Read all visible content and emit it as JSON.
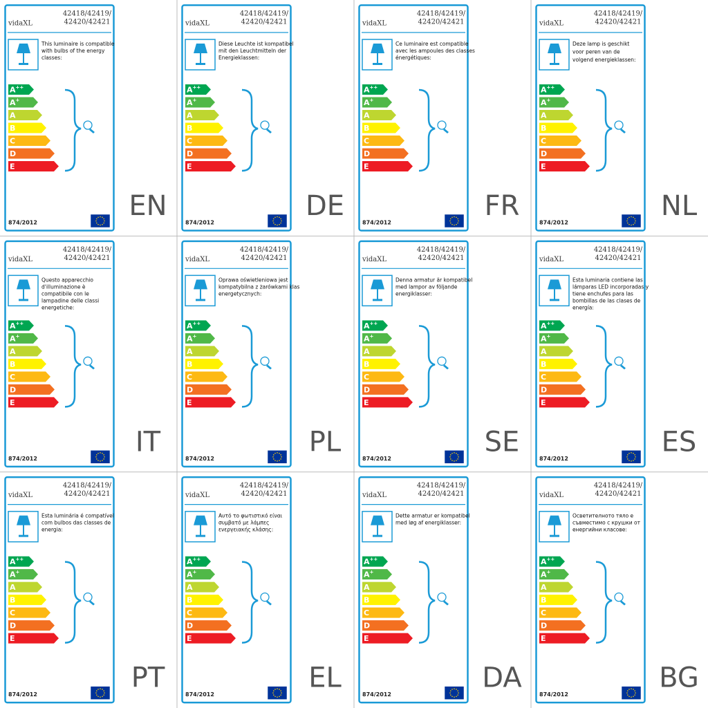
{
  "brand": "vidaXL",
  "model": [
    "42418/42419/",
    "42420/42421"
  ],
  "regulation": "874/2012",
  "energy_classes": [
    {
      "letter": "A",
      "sup": "++",
      "color": "#00a651"
    },
    {
      "letter": "A",
      "sup": "+",
      "color": "#50b848"
    },
    {
      "letter": "A",
      "color": "#bed630"
    },
    {
      "letter": "B",
      "color": "#fff200"
    },
    {
      "letter": "C",
      "color": "#fdb913"
    },
    {
      "letter": "D",
      "color": "#f37021"
    },
    {
      "letter": "E",
      "color": "#ed1c24"
    }
  ],
  "panels": [
    {
      "lang": "EN",
      "description": [
        "This luminaire is compatible",
        "with bulbs of the energy",
        "classes:"
      ]
    },
    {
      "lang": "DE",
      "description": [
        "Diese Leuchte ist kompatibel",
        "mit den Leuchtmitteln der",
        "Energieklassen:"
      ]
    },
    {
      "lang": "FR",
      "description": [
        "Ce luminaire est compatible",
        "avec les ampoules des classes",
        "énergétiques:"
      ]
    },
    {
      "lang": "NL",
      "description": [
        "Deze lamp is geschikt",
        "voor peren van de",
        "volgend energieklassen:"
      ]
    },
    {
      "lang": "IT",
      "description": [
        "Questo apparecchio",
        "d'illuminazione è",
        "compatibile con le",
        "lampadine delle classi",
        "energetiche:"
      ]
    },
    {
      "lang": "PL",
      "description": [
        "Oprawa oświetleniowa jest",
        "kompatybilna z żarówkami klas",
        "energetycznych:"
      ]
    },
    {
      "lang": "SE",
      "description": [
        "Denna armatur är kompatibel",
        "med lampor av följande",
        "energiklasser:"
      ]
    },
    {
      "lang": "ES",
      "description": [
        "Esta luminaria contiene las",
        "lámparas LED incorporadas y",
        "tiene enchufes para las",
        "bombillas de las clases de",
        "energía:"
      ]
    },
    {
      "lang": "PT",
      "description": [
        "Esta luminária é compatível",
        "com bulbos das classes de",
        "energia:"
      ]
    },
    {
      "lang": "EL",
      "description": [
        "Αυτό το φωτιστικό είναι",
        "συμβατό με λάμπες",
        "ενεργειακής κλάσης:"
      ]
    },
    {
      "lang": "DA",
      "description": [
        "Dette armatur er kompatibel",
        "med løg af energiklasser:"
      ]
    },
    {
      "lang": "BG",
      "description": [
        "Осветителното тяло е",
        "съвместимо с крушки от",
        "енергийни класове:"
      ]
    }
  ]
}
